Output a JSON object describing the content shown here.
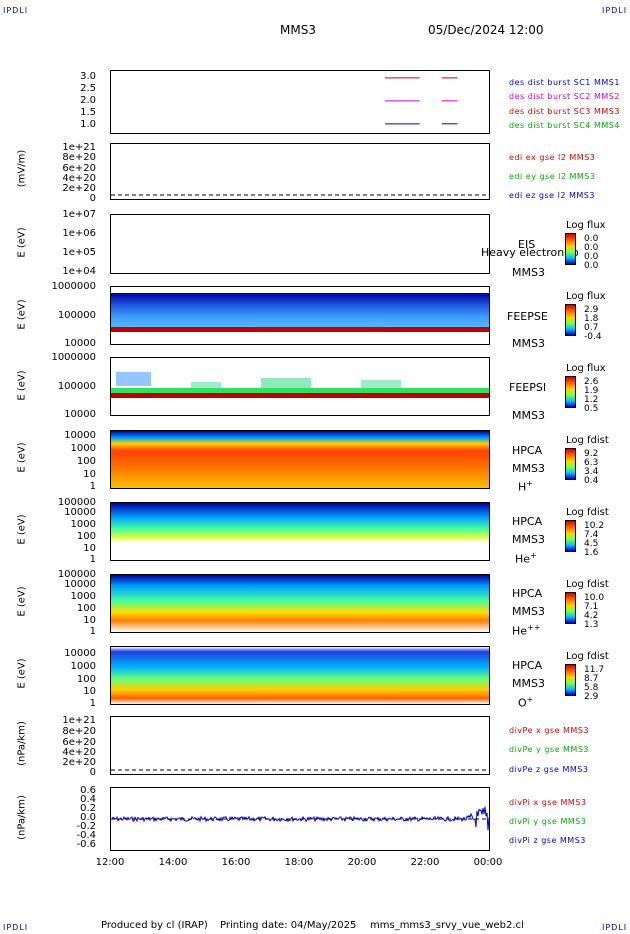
{
  "corners": {
    "tl": "IPDLI",
    "tr": "IPDLI",
    "bl": "IPDLI",
    "br": "IPDLI"
  },
  "header": {
    "mission": "MMS3",
    "datetime": "05/Dec/2024 12:00"
  },
  "colors": {
    "red": "#cc0000",
    "magenta": "#cc00cc",
    "blue": "#0000cc",
    "green": "#00cc00"
  },
  "chart_data": [
    {
      "type": "line",
      "name": "des dist burst",
      "yticks": [
        "3.0",
        "2.5",
        "2.0",
        "1.5",
        "1.0"
      ],
      "legend": [
        "des dist burst SC1 MMS1",
        "des dist burst SC2 MMS2",
        "des dist burst SC3 MMS3",
        "des dist burst SC4 MMS4"
      ],
      "legend_colors": [
        "#0000cc",
        "#cc00cc",
        "#cc0000",
        "#00cc00"
      ],
      "segments": [
        {
          "y": 3.0,
          "x": [
            [
              20.7,
              21.8
            ],
            [
              22.5,
              23.0
            ]
          ],
          "color": "#cc0000"
        },
        {
          "y": 2.0,
          "x": [
            [
              20.7,
              21.8
            ],
            [
              22.5,
              23.0
            ]
          ],
          "color": "#cc00cc"
        },
        {
          "y": 1.0,
          "x": [
            [
              20.7,
              21.8
            ],
            [
              22.5,
              23.0
            ]
          ],
          "color": "#0000cc"
        }
      ],
      "ylim": [
        0.6,
        3.3
      ]
    },
    {
      "type": "line",
      "ylabel": "(mV/m)",
      "yticks": [
        "1e+21",
        "8e+20",
        "6e+20",
        "4e+20",
        "2e+20",
        "0"
      ],
      "legend": [
        "edi ex gse l2 MMS3",
        "edi ey gse l2 MMS3",
        "edi ez gse l2 MMS3"
      ],
      "legend_colors": [
        "#cc0000",
        "#00cc00",
        "#0000cc"
      ]
    },
    {
      "type": "heatmap",
      "ylabel": "E (eV)",
      "yticks": [
        "1e+07",
        "1e+06",
        "1e+05",
        "1e+04"
      ],
      "side": [
        "EIS",
        "MMS3"
      ],
      "overlay": "Heavy electron to",
      "cbar_title": "Log flux",
      "cbar_values": [
        "0.0",
        "0.0",
        "0.0",
        "0.0"
      ]
    },
    {
      "type": "heatmap",
      "ylabel": "E (eV)",
      "yticks": [
        "1000000",
        "100000",
        "10000"
      ],
      "side": [
        "FEEPSE",
        "MMS3"
      ],
      "cbar_title": "Log flux",
      "cbar_values": [
        "2.9",
        "1.8",
        "0.7",
        "-0.4"
      ]
    },
    {
      "type": "heatmap",
      "ylabel": "E (eV)",
      "yticks": [
        "1000000",
        "100000",
        "10000"
      ],
      "side": [
        "FEEPSI",
        "MMS3"
      ],
      "cbar_title": "Log flux",
      "cbar_values": [
        "2.6",
        "1.9",
        "1.2",
        "0.5"
      ]
    },
    {
      "type": "heatmap",
      "ylabel": "E (eV)",
      "yticks": [
        "10000",
        "1000",
        "100",
        "10",
        "1"
      ],
      "side": [
        "HPCA",
        "MMS3"
      ],
      "species": "H",
      "charge": "+",
      "cbar_title": "Log fdist",
      "cbar_values": [
        "9.2",
        "6.3",
        "3.4",
        "0.4"
      ]
    },
    {
      "type": "heatmap",
      "ylabel": "E (eV)",
      "yticks": [
        "100000",
        "10000",
        "1000",
        "100",
        "10",
        "1"
      ],
      "side": [
        "HPCA",
        "MMS3"
      ],
      "species": "He",
      "charge": "+",
      "cbar_title": "Log fdist",
      "cbar_values": [
        "10.2",
        "7.4",
        "4.5",
        "1.6"
      ]
    },
    {
      "type": "heatmap",
      "ylabel": "E (eV)",
      "yticks": [
        "100000",
        "10000",
        "1000",
        "100",
        "10",
        "1"
      ],
      "side": [
        "HPCA",
        "MMS3"
      ],
      "species": "He",
      "charge": "++",
      "cbar_title": "Log fdist",
      "cbar_values": [
        "10.0",
        "7.1",
        "4.2",
        "1.3"
      ]
    },
    {
      "type": "heatmap",
      "ylabel": "E (eV)",
      "yticks": [
        "10000",
        "1000",
        "100",
        "10",
        "1"
      ],
      "side": [
        "HPCA",
        "MMS3"
      ],
      "species": "O",
      "charge": "+",
      "cbar_title": "Log fdist",
      "cbar_values": [
        "11.7",
        "8.7",
        "5.8",
        "2.9"
      ]
    },
    {
      "type": "line",
      "ylabel": "(nPa/km)",
      "yticks": [
        "1e+21",
        "8e+20",
        "6e+20",
        "4e+20",
        "2e+20",
        "0"
      ],
      "legend": [
        "divPe x gse MMS3",
        "divPe y gse MMS3",
        "divPe z gse MMS3"
      ],
      "legend_colors": [
        "#cc0000",
        "#00cc00",
        "#0000cc"
      ]
    },
    {
      "type": "line",
      "ylabel": "(nPa/km)",
      "yticks": [
        "0.6",
        "0.4",
        "0.2",
        "0.0",
        "-0.2",
        "-0.4",
        "-0.6"
      ],
      "legend": [
        "divPi x gse MMS3",
        "divPi y gse MMS3",
        "divPi z gse MMS3"
      ],
      "legend_colors": [
        "#cc0000",
        "#00cc00",
        "#0000cc"
      ],
      "ylim": [
        -0.7,
        0.7
      ]
    }
  ],
  "xaxis": {
    "ticks": [
      "12:00",
      "14:00",
      "16:00",
      "18:00",
      "20:00",
      "22:00",
      "00:00"
    ],
    "range": [
      12,
      24
    ]
  },
  "footer": {
    "producer": "Produced by cl (IRAP)",
    "printing": "Printing date: 04/May/2025",
    "file": "mms_mms3_srvy_vue_web2.cl"
  }
}
